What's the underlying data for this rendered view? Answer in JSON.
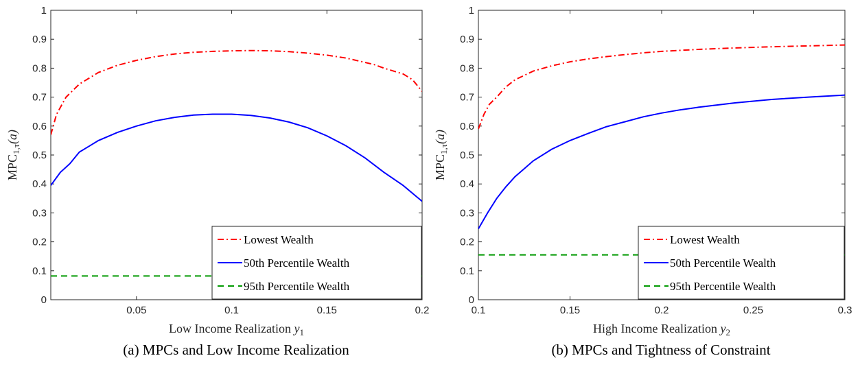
{
  "colors": {
    "lowest": "#ff0000",
    "p50": "#0000ff",
    "p95": "#009900"
  },
  "chart_data": [
    {
      "type": "line",
      "caption": "(a) MPCs and Low Income Realization",
      "xlabel_text": "Low Income Realization ",
      "xlabel_var": "y",
      "xlabel_sub": "1",
      "ylabel_main": "MPC",
      "ylabel_sub": "1,τ",
      "ylabel_arg": "(a)",
      "xlim": [
        0.005,
        0.2
      ],
      "ylim": [
        0,
        1
      ],
      "xticks": [
        0.05,
        0.1,
        0.15,
        0.2
      ],
      "xtick_labels": [
        "0.05",
        "0.1",
        "0.15",
        "0.2"
      ],
      "yticks": [
        0,
        0.1,
        0.2,
        0.3,
        0.4,
        0.5,
        0.6,
        0.7,
        0.8,
        0.9,
        1
      ],
      "ytick_labels": [
        "0",
        "0.1",
        "0.2",
        "0.3",
        "0.4",
        "0.5",
        "0.6",
        "0.7",
        "0.8",
        "0.9",
        "1"
      ],
      "legend_position": "bottom-right",
      "series": [
        {
          "name": "Lowest Wealth",
          "style": "dashdot",
          "color_key": "lowest",
          "x": [
            0.005,
            0.008,
            0.013,
            0.02,
            0.03,
            0.04,
            0.05,
            0.06,
            0.07,
            0.08,
            0.09,
            0.1,
            0.11,
            0.12,
            0.13,
            0.14,
            0.15,
            0.16,
            0.17,
            0.175,
            0.18,
            0.19,
            0.195,
            0.2
          ],
          "y": [
            0.57,
            0.64,
            0.7,
            0.745,
            0.785,
            0.81,
            0.827,
            0.84,
            0.849,
            0.855,
            0.858,
            0.86,
            0.861,
            0.86,
            0.857,
            0.852,
            0.845,
            0.835,
            0.82,
            0.812,
            0.8,
            0.78,
            0.76,
            0.72
          ]
        },
        {
          "name": "50th Percentile Wealth",
          "style": "solid",
          "color_key": "p50",
          "x": [
            0.005,
            0.01,
            0.015,
            0.02,
            0.03,
            0.04,
            0.05,
            0.06,
            0.07,
            0.08,
            0.09,
            0.1,
            0.11,
            0.12,
            0.13,
            0.14,
            0.15,
            0.16,
            0.17,
            0.18,
            0.19,
            0.2
          ],
          "y": [
            0.395,
            0.44,
            0.47,
            0.51,
            0.55,
            0.578,
            0.6,
            0.618,
            0.63,
            0.638,
            0.641,
            0.641,
            0.637,
            0.628,
            0.614,
            0.594,
            0.566,
            0.532,
            0.49,
            0.44,
            0.395,
            0.34
          ]
        },
        {
          "name": "95th Percentile Wealth",
          "style": "dashed",
          "color_key": "p95",
          "x": [
            0.005,
            0.2
          ],
          "y": [
            0.082,
            0.082
          ]
        }
      ]
    },
    {
      "type": "line",
      "caption": "(b) MPCs and Tightness of Constraint",
      "xlabel_text": "High Income Realization ",
      "xlabel_var": "y",
      "xlabel_sub": "2",
      "ylabel_main": "MPC",
      "ylabel_sub": "1,τ",
      "ylabel_arg": "(a)",
      "xlim": [
        0.1,
        0.3
      ],
      "ylim": [
        0,
        1
      ],
      "xticks": [
        0.1,
        0.15,
        0.2,
        0.25,
        0.3
      ],
      "xtick_labels": [
        "0.1",
        "0.15",
        "0.2",
        "0.25",
        "0.3"
      ],
      "yticks": [
        0,
        0.1,
        0.2,
        0.3,
        0.4,
        0.5,
        0.6,
        0.7,
        0.8,
        0.9,
        1
      ],
      "ytick_labels": [
        "0",
        "0.1",
        "0.2",
        "0.3",
        "0.4",
        "0.5",
        "0.6",
        "0.7",
        "0.8",
        "0.9",
        "1"
      ],
      "legend_position": "bottom-right",
      "series": [
        {
          "name": "Lowest Wealth",
          "style": "dashdot",
          "color_key": "lowest",
          "x": [
            0.1,
            0.103,
            0.106,
            0.11,
            0.115,
            0.12,
            0.13,
            0.14,
            0.15,
            0.16,
            0.17,
            0.18,
            0.19,
            0.2,
            0.22,
            0.24,
            0.26,
            0.28,
            0.3
          ],
          "y": [
            0.59,
            0.64,
            0.675,
            0.7,
            0.735,
            0.76,
            0.79,
            0.808,
            0.822,
            0.832,
            0.84,
            0.847,
            0.853,
            0.858,
            0.865,
            0.87,
            0.874,
            0.877,
            0.88
          ]
        },
        {
          "name": "50th Percentile Wealth",
          "style": "solid",
          "color_key": "p50",
          "x": [
            0.1,
            0.105,
            0.11,
            0.115,
            0.12,
            0.13,
            0.14,
            0.15,
            0.16,
            0.17,
            0.18,
            0.19,
            0.2,
            0.21,
            0.22,
            0.24,
            0.26,
            0.28,
            0.3
          ],
          "y": [
            0.245,
            0.3,
            0.35,
            0.39,
            0.425,
            0.48,
            0.52,
            0.55,
            0.575,
            0.598,
            0.615,
            0.632,
            0.645,
            0.656,
            0.665,
            0.68,
            0.692,
            0.7,
            0.707
          ]
        },
        {
          "name": "95th Percentile Wealth",
          "style": "dashed",
          "color_key": "p95",
          "x": [
            0.1,
            0.3
          ],
          "y": [
            0.155,
            0.155
          ]
        }
      ]
    }
  ]
}
